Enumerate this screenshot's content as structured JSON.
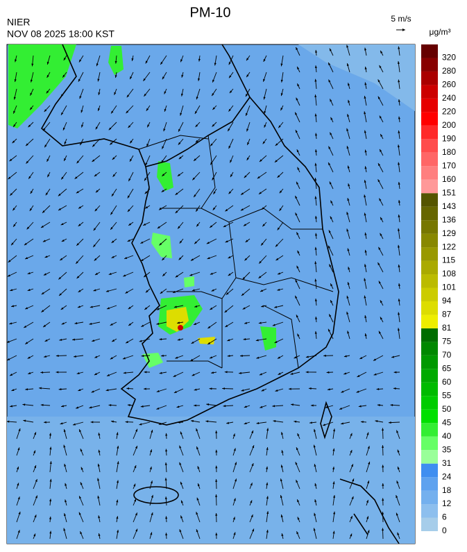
{
  "header": {
    "title": "PM-10",
    "agency": "NIER",
    "datetime": "NOV 08 2025 18:00 KST",
    "wind_scale": "5 m/s",
    "unit": "μg/m³"
  },
  "colorbar": {
    "levels": [
      0,
      6,
      12,
      18,
      24,
      31,
      35,
      40,
      45,
      50,
      55,
      60,
      65,
      70,
      75,
      81,
      87,
      94,
      101,
      108,
      115,
      122,
      129,
      136,
      143,
      151,
      160,
      170,
      180,
      190,
      200,
      220,
      240,
      260,
      280,
      320
    ],
    "colors": [
      "#a6cdea",
      "#8dbfee",
      "#74b0ee",
      "#5ea2ef",
      "#3f8ef0",
      "#99ff99",
      "#66ff66",
      "#33ee33",
      "#00e000",
      "#00cc00",
      "#00bb00",
      "#00aa00",
      "#009900",
      "#008800",
      "#006e00",
      "#eeee00",
      "#dddd00",
      "#cccc00",
      "#bbbb00",
      "#aaaa00",
      "#999900",
      "#888800",
      "#777700",
      "#666600",
      "#555500",
      "#ff9999",
      "#ff7f7f",
      "#ff6666",
      "#ff4c4c",
      "#ff2a2a",
      "#ff0000",
      "#e60000",
      "#cc0000",
      "#aa0000",
      "#880000",
      "#660000"
    ]
  }
}
